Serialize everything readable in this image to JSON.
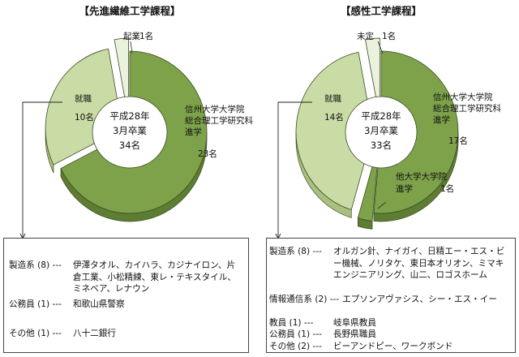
{
  "colors": {
    "top_dark": "#7da24a",
    "side_dark": "#5c7d32",
    "top_light": "#c9dca6",
    "side_light": "#a9c07e",
    "top_pale": "#eaf1dd",
    "side_pale": "#c8d4b4",
    "edge": "#3d4d24"
  },
  "chart_data": [
    {
      "type": "pie",
      "title": "【先進繊維工学課程】",
      "center": [
        "平成28年",
        "3月卒業",
        "34名"
      ],
      "slices": [
        {
          "key": "grad",
          "label": [
            "信州大学大学院",
            "総合理工学研究科",
            "進学"
          ],
          "value": 23,
          "value_label": "23名",
          "color": "#7da24a"
        },
        {
          "key": "job",
          "label": [
            "就職"
          ],
          "value": 10,
          "value_label": "10名",
          "color": "#c9dca6"
        },
        {
          "key": "startup",
          "label": [
            "起業"
          ],
          "value": 1,
          "value_label": "1名",
          "color": "#eaf1dd"
        }
      ]
    },
    {
      "type": "pie",
      "title": "【感性工学課程】",
      "center": [
        "平成28年",
        "3月卒業",
        "33名"
      ],
      "slices": [
        {
          "key": "grad",
          "label": [
            "信州大学大学院",
            "総合理工学研究科",
            "進学"
          ],
          "value": 17,
          "value_label": "17名",
          "color": "#7da24a"
        },
        {
          "key": "other",
          "label": [
            "他大学大学院",
            "進学"
          ],
          "value": 1,
          "value_label": "1名",
          "color": "#7da24a"
        },
        {
          "key": "job",
          "label": [
            "就職"
          ],
          "value": 14,
          "value_label": "14名",
          "color": "#c9dca6"
        },
        {
          "key": "undecided",
          "label": [
            "未定"
          ],
          "value": 1,
          "value_label": "1名",
          "color": "#eaf1dd"
        }
      ]
    }
  ],
  "breakdowns": [
    {
      "rows": [
        {
          "key": "製造系 (8) ---",
          "value": "伊澤タオル、カイハラ、カジナイロン、片倉工業、小松精練、東レ・テキスタイル、ミネベア、レナウン"
        },
        {
          "key": "公務員 (1) ---",
          "value": "和歌山県警察"
        },
        {
          "key": "その他 (1) ---",
          "value": "八十二銀行"
        }
      ]
    },
    {
      "rows": [
        {
          "key": "製造系 (8) ---",
          "value": "オルガン針、ナイガイ、日精エー・エス・ビー機械、ノリタケ、東日本オリオン、ミマキエンジニアリング、山二、ロゴスホーム"
        },
        {
          "key": "情報通信系 (2) ---",
          "value": "エプソンアヴァシス、シー・エス・イー"
        },
        {
          "key": "教員 (1) ---",
          "value": "岐阜県教員"
        },
        {
          "key": "公務員 (1) ---",
          "value": "長野県職員"
        },
        {
          "key": "その他  (2) ---",
          "value": "ビーアンドピー、ワークボンド"
        }
      ]
    }
  ]
}
